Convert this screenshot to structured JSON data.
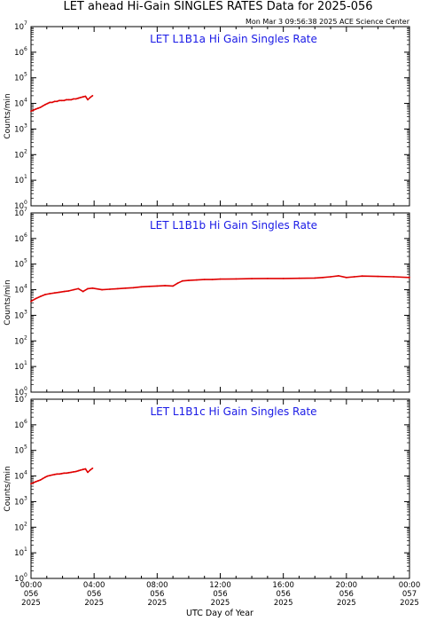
{
  "header": {
    "title": "LET ahead Hi-Gain SINGLES RATES Data for 2025-056",
    "timestamp": "Mon Mar  3 09:56:38 2025 ACE Science Center"
  },
  "colors": {
    "series": "#e00000",
    "panel_title": "#1a1ae6"
  },
  "chart_data": [
    {
      "type": "line",
      "title": "LET L1B1a Hi Gain Singles Rate",
      "ylabel": "Counts/min",
      "yscale": "log",
      "ylim": [
        1,
        10000000
      ],
      "xlim": [
        0,
        24
      ],
      "series": [
        {
          "x": [
            0.0,
            0.15,
            0.3,
            0.45,
            0.6,
            0.75,
            0.9,
            1.05,
            1.2,
            1.35,
            1.5,
            1.65,
            1.8,
            1.95,
            2.1,
            2.25,
            2.4,
            2.55,
            2.7,
            2.85,
            3.0,
            3.15,
            3.3,
            3.45,
            3.6,
            3.75,
            3.9
          ],
          "y": [
            5000,
            5500,
            6000,
            6500,
            7000,
            8000,
            9000,
            10000,
            11000,
            11000,
            12000,
            12000,
            13000,
            13000,
            13000,
            14000,
            14000,
            14000,
            15000,
            15000,
            16000,
            17000,
            18000,
            19000,
            14000,
            17000,
            20000
          ]
        }
      ]
    },
    {
      "type": "line",
      "title": "LET L1B1b Hi Gain Singles Rate",
      "ylabel": "Counts/min",
      "yscale": "log",
      "ylim": [
        1,
        10000000
      ],
      "xlim": [
        0,
        24
      ],
      "series": [
        {
          "x": [
            0.0,
            0.3,
            0.6,
            0.9,
            1.2,
            1.5,
            1.8,
            2.1,
            2.4,
            2.7,
            3.0,
            3.3,
            3.6,
            3.9,
            4.5,
            5.0,
            5.5,
            6.0,
            6.5,
            7.0,
            7.5,
            8.0,
            8.5,
            9.0,
            9.3,
            9.6,
            10.0,
            10.5,
            11.0,
            11.5,
            12.0,
            13.0,
            14.0,
            15.0,
            16.0,
            17.0,
            18.0,
            18.5,
            19.0,
            19.5,
            20.0,
            20.5,
            21.0,
            22.0,
            23.0,
            24.0
          ],
          "y": [
            3500,
            4500,
            5500,
            6500,
            7000,
            7500,
            8000,
            8500,
            9000,
            10000,
            11000,
            8500,
            11000,
            11500,
            10000,
            10500,
            11000,
            11500,
            12000,
            13000,
            13500,
            14000,
            14500,
            14000,
            18000,
            22000,
            23000,
            24000,
            25000,
            25000,
            26000,
            26500,
            27000,
            27500,
            27500,
            28000,
            28500,
            30000,
            32000,
            35000,
            30000,
            32000,
            34000,
            33000,
            32000,
            30000
          ]
        }
      ]
    },
    {
      "type": "line",
      "title": "LET L1B1c Hi Gain Singles Rate",
      "ylabel": "Counts/min",
      "yscale": "log",
      "ylim": [
        1,
        10000000
      ],
      "xlim": [
        0,
        24
      ],
      "series": [
        {
          "x": [
            0.0,
            0.15,
            0.3,
            0.45,
            0.6,
            0.75,
            0.9,
            1.05,
            1.2,
            1.35,
            1.5,
            1.65,
            1.8,
            1.95,
            2.1,
            2.25,
            2.4,
            2.55,
            2.7,
            2.85,
            3.0,
            3.15,
            3.3,
            3.45,
            3.6,
            3.75,
            3.9
          ],
          "y": [
            5000,
            5500,
            6000,
            6500,
            7000,
            8000,
            9000,
            10000,
            10500,
            11000,
            11500,
            12000,
            12000,
            12500,
            13000,
            13000,
            13500,
            14000,
            14500,
            15000,
            16000,
            17000,
            18000,
            19000,
            14000,
            17000,
            20000
          ]
        }
      ]
    }
  ],
  "y_tick_labels": [
    {
      "base": "10",
      "exp": "0"
    },
    {
      "base": "10",
      "exp": "1"
    },
    {
      "base": "10",
      "exp": "2"
    },
    {
      "base": "10",
      "exp": "3"
    },
    {
      "base": "10",
      "exp": "4"
    },
    {
      "base": "10",
      "exp": "5"
    },
    {
      "base": "10",
      "exp": "6"
    },
    {
      "base": "10",
      "exp": "7"
    }
  ],
  "x_ticks": [
    {
      "value": 0,
      "lines": [
        "00:00",
        "056",
        "2025"
      ]
    },
    {
      "value": 4,
      "lines": [
        "04:00",
        "056",
        "2025"
      ]
    },
    {
      "value": 8,
      "lines": [
        "08:00",
        "056",
        "2025"
      ]
    },
    {
      "value": 12,
      "lines": [
        "12:00",
        "056",
        "2025"
      ]
    },
    {
      "value": 16,
      "lines": [
        "16:00",
        "056",
        "2025"
      ]
    },
    {
      "value": 20,
      "lines": [
        "20:00",
        "056",
        "2025"
      ]
    },
    {
      "value": 24,
      "lines": [
        "00:00",
        "057",
        "2025"
      ]
    }
  ],
  "xlabel": "UTC Day of Year"
}
